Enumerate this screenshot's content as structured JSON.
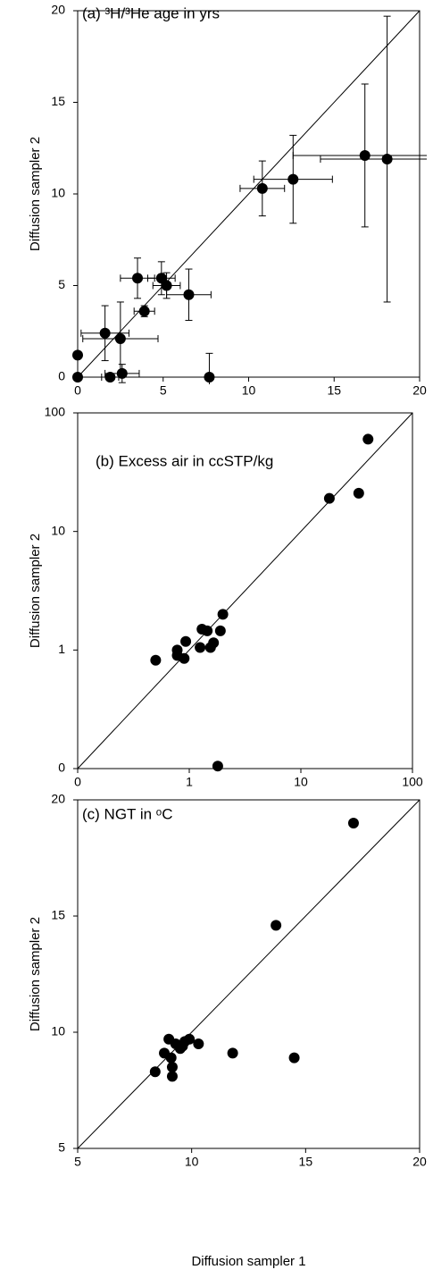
{
  "chart_data": [
    {
      "type": "scatter",
      "title": "(a)  ³H/³He age in yrs",
      "y_label": "Diffusion sampler 2",
      "color": "#000000",
      "identity_line": true,
      "log_scale": false,
      "x": [
        0,
        0,
        1.6,
        2.5,
        1.9,
        2.6,
        3.5,
        3.9,
        4.9,
        5.2,
        6.5,
        7.7,
        10.8,
        12.6,
        16.8,
        18.1
      ],
      "y": [
        0,
        1.2,
        2.4,
        2.1,
        0,
        0.2,
        5.4,
        3.6,
        5.4,
        5.0,
        4.5,
        0,
        10.3,
        10.8,
        12.1,
        11.9
      ],
      "xerr": [
        0,
        0,
        1.4,
        2.2,
        0.5,
        1.0,
        1.0,
        0.6,
        0.8,
        0.8,
        1.3,
        0,
        1.3,
        2.3,
        4.2,
        3.9
      ],
      "yerr": [
        0,
        0,
        1.5,
        2.0,
        0,
        0.5,
        1.1,
        0.3,
        0.9,
        0.7,
        1.4,
        1.3,
        1.5,
        2.4,
        3.9,
        7.8
      ],
      "xlim": [
        0,
        20
      ],
      "ylim": [
        0,
        20
      ],
      "xticks": [
        0,
        5,
        10,
        15,
        20
      ],
      "yticks": [
        0,
        5,
        10,
        15,
        20
      ]
    },
    {
      "type": "scatter",
      "title": "(b)  Excess air in ccSTP/kg",
      "y_label": "Diffusion sampler 2",
      "color": "#000000",
      "identity_line": true,
      "log_scale": true,
      "x": [
        0.5,
        0.78,
        0.78,
        0.9,
        0.93,
        1.25,
        1.3,
        1.45,
        1.55,
        1.65,
        1.9,
        2.0,
        1.8,
        18,
        33,
        40
      ],
      "y": [
        0.82,
        0.9,
        1.0,
        0.85,
        1.18,
        1.05,
        1.5,
        1.45,
        1.05,
        1.15,
        1.45,
        2.0,
        0.105,
        19,
        21,
        60
      ],
      "xlim": [
        0.1,
        100
      ],
      "ylim": [
        0.1,
        100
      ],
      "xticks": [
        {
          "value": 0.1,
          "label": "0"
        },
        1,
        10,
        100
      ],
      "yticks": [
        {
          "value": 0.1,
          "label": "0"
        },
        1,
        10,
        100
      ]
    },
    {
      "type": "scatter",
      "title": "(c)  NGT in ᵒC",
      "y_label": "Diffusion sampler 2",
      "x_label": "Diffusion sampler 1",
      "color": "#000000",
      "identity_line": true,
      "log_scale": false,
      "x": [
        8.4,
        8.8,
        9.0,
        9.1,
        9.15,
        9.15,
        9.3,
        9.5,
        9.6,
        9.7,
        9.9,
        10.3,
        11.8,
        13.7,
        14.5,
        17.1
      ],
      "y": [
        8.3,
        9.1,
        9.7,
        8.9,
        8.5,
        8.1,
        9.5,
        9.3,
        9.4,
        9.6,
        9.7,
        9.5,
        9.1,
        14.6,
        8.9,
        19.0
      ],
      "xlim": [
        5,
        20
      ],
      "ylim": [
        5,
        20
      ],
      "xticks": [
        5,
        10,
        15,
        20
      ],
      "yticks": [
        5,
        10,
        15,
        20
      ]
    }
  ]
}
